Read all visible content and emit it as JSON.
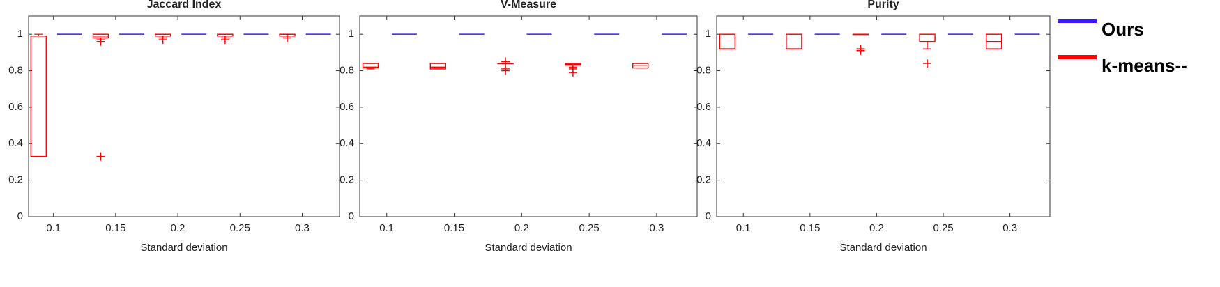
{
  "legend": [
    {
      "name": "Ours",
      "color": "#3a1cff"
    },
    {
      "name": "k-means--",
      "color": "#ff0000"
    }
  ],
  "chart_data": [
    {
      "type": "box",
      "title": "Jaccard Index",
      "xlabel": "Standard deviation",
      "xlim": [
        0.08,
        0.33
      ],
      "xticks": [
        0.1,
        0.15,
        0.2,
        0.25,
        0.3
      ],
      "ylim": [
        0,
        1.1
      ],
      "yticks": [
        0,
        0.2,
        0.4,
        0.6,
        0.8,
        1
      ],
      "series": [
        {
          "color": "#3a1cff",
          "x": [
            0.113,
            0.163,
            0.213,
            0.263,
            0.313
          ],
          "values": [
            1,
            1,
            1,
            1,
            1
          ]
        },
        {
          "color": "#ff0000",
          "x": [
            0.088,
            0.138,
            0.188,
            0.238,
            0.288
          ],
          "boxes": [
            {
              "min": 0.33,
              "q1": 0.33,
              "median": 0.99,
              "q3": 0.99,
              "max": 1.0,
              "outliers": []
            },
            {
              "min": 0.97,
              "q1": 0.98,
              "median": 0.99,
              "q3": 1.0,
              "max": 1.0,
              "outliers": [
                0.96,
                0.33
              ]
            },
            {
              "min": 0.98,
              "q1": 0.99,
              "median": 1.0,
              "q3": 1.0,
              "max": 1.0,
              "outliers": [
                0.97
              ]
            },
            {
              "min": 0.98,
              "q1": 0.99,
              "median": 1.0,
              "q3": 1.0,
              "max": 1.0,
              "outliers": [
                0.97
              ]
            },
            {
              "min": 0.99,
              "q1": 0.99,
              "median": 1.0,
              "q3": 1.0,
              "max": 1.0,
              "outliers": [
                0.98
              ]
            }
          ]
        }
      ]
    },
    {
      "type": "box",
      "title": "V-Measure",
      "xlabel": "Standard deviation",
      "xlim": [
        0.08,
        0.33
      ],
      "xticks": [
        0.1,
        0.15,
        0.2,
        0.25,
        0.3
      ],
      "ylim": [
        0,
        1.1
      ],
      "yticks": [
        0,
        0.2,
        0.4,
        0.6,
        0.8,
        1
      ],
      "series": [
        {
          "color": "#3a1cff",
          "x": [
            0.113,
            0.163,
            0.213,
            0.263,
            0.313
          ],
          "values": [
            1,
            1,
            1,
            1,
            1
          ]
        },
        {
          "color": "#ff0000",
          "x": [
            0.088,
            0.138,
            0.188,
            0.238,
            0.288
          ],
          "boxes": [
            {
              "min": 0.81,
              "q1": 0.815,
              "median": 0.82,
              "q3": 0.84,
              "max": 0.84,
              "outliers": []
            },
            {
              "min": 0.81,
              "q1": 0.81,
              "median": 0.82,
              "q3": 0.84,
              "max": 0.84,
              "outliers": []
            },
            {
              "min": 0.84,
              "q1": 0.84,
              "median": 0.84,
              "q3": 0.84,
              "max": 0.84,
              "outliers": [
                0.85,
                0.81,
                0.8
              ]
            },
            {
              "min": 0.82,
              "q1": 0.83,
              "median": 0.835,
              "q3": 0.84,
              "max": 0.84,
              "outliers": [
                0.81,
                0.79
              ]
            },
            {
              "min": 0.815,
              "q1": 0.815,
              "median": 0.83,
              "q3": 0.84,
              "max": 0.84,
              "outliers": []
            }
          ]
        }
      ]
    },
    {
      "type": "box",
      "title": "Purity",
      "xlabel": "Standard deviation",
      "xlim": [
        0.08,
        0.33
      ],
      "xticks": [
        0.1,
        0.15,
        0.2,
        0.25,
        0.3
      ],
      "ylim": [
        0,
        1.1
      ],
      "yticks": [
        0,
        0.2,
        0.4,
        0.6,
        0.8,
        1
      ],
      "series": [
        {
          "color": "#3a1cff",
          "x": [
            0.113,
            0.163,
            0.213,
            0.263,
            0.313
          ],
          "values": [
            1,
            1,
            1,
            1,
            1
          ]
        },
        {
          "color": "#ff0000",
          "x": [
            0.088,
            0.138,
            0.188,
            0.238,
            0.288
          ],
          "boxes": [
            {
              "min": 0.92,
              "q1": 0.92,
              "median": 0.92,
              "q3": 1.0,
              "max": 1.0,
              "outliers": []
            },
            {
              "min": 0.92,
              "q1": 0.92,
              "median": 0.92,
              "q3": 1.0,
              "max": 1.0,
              "outliers": []
            },
            {
              "min": 1.0,
              "q1": 1.0,
              "median": 1.0,
              "q3": 1.0,
              "max": 1.0,
              "outliers": [
                0.92,
                0.91
              ]
            },
            {
              "min": 0.92,
              "q1": 0.96,
              "median": 0.96,
              "q3": 1.0,
              "max": 1.0,
              "outliers": [
                0.84
              ]
            },
            {
              "min": 0.92,
              "q1": 0.92,
              "median": 0.96,
              "q3": 1.0,
              "max": 1.0,
              "outliers": []
            }
          ]
        }
      ]
    }
  ]
}
